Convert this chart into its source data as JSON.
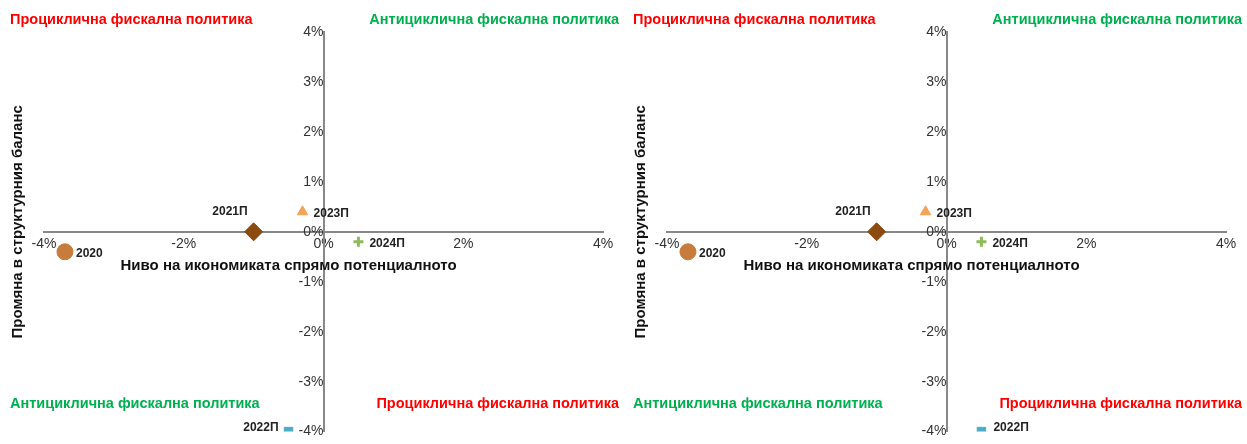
{
  "chart_data": [
    {
      "type": "scatter",
      "xlabel": "Ниво на икономиката спрямо потенциалното",
      "ylabel": "Промяна в структурния баланс",
      "annotations": [
        "Проциклична фискална политика",
        "Антициклична фискална политика",
        "Антициклична фискална политика",
        "Проциклична фискална политика"
      ],
      "xlim": [
        -4,
        4
      ],
      "ylim": [
        -4,
        4
      ],
      "xticks": [
        {
          "value": -4,
          "label": "-4%"
        },
        {
          "value": -2,
          "label": "-2%"
        },
        {
          "value": 0,
          "label": "0%"
        },
        {
          "value": 2,
          "label": "2%"
        },
        {
          "value": 4,
          "label": "4%"
        }
      ],
      "yticks": [
        {
          "value": -4,
          "label": "-4%"
        },
        {
          "value": -3,
          "label": "-3%"
        },
        {
          "value": -2,
          "label": "-2%"
        },
        {
          "value": -1,
          "label": "-1%"
        },
        {
          "value": 0,
          "label": "0%"
        },
        {
          "value": 1,
          "label": "1%"
        },
        {
          "value": 2,
          "label": "2%"
        },
        {
          "value": 3,
          "label": "3%"
        },
        {
          "value": 4,
          "label": "4%"
        }
      ],
      "grid": false,
      "legend": false,
      "series": [
        {
          "name": "2020",
          "color": "#c77c3c",
          "marker": "circle",
          "x": [
            -3.7
          ],
          "values": [
            -0.4
          ]
        },
        {
          "name": "2021П",
          "color": "#8b4a10",
          "marker": "diamond",
          "x": [
            -1.0
          ],
          "values": [
            0
          ]
        },
        {
          "name": "2023П",
          "color": "#f4a257",
          "marker": "triangle",
          "x": [
            -0.3
          ],
          "values": [
            0.4
          ]
        },
        {
          "name": "2024П",
          "color": "#8fbc5a",
          "marker": "cross",
          "x": [
            0.5
          ],
          "values": [
            -0.2
          ]
        },
        {
          "name": "2022П",
          "color": "#4bacc6",
          "marker": "square",
          "x": [
            -0.5
          ],
          "values": [
            -4
          ]
        }
      ]
    },
    {
      "type": "scatter",
      "xlabel": "Ниво на икономиката спрямо потенциалното",
      "ylabel": "Промяна в структурния баланс",
      "annotations": [
        "Проциклична фискална политика",
        "Антициклична фискална политика",
        "Антициклична фискална политика",
        "Проциклична фискална политика"
      ],
      "xlim": [
        -4,
        4
      ],
      "ylim": [
        -4,
        4
      ],
      "xticks": [
        {
          "value": -4,
          "label": "-4%"
        },
        {
          "value": -2,
          "label": "-2%"
        },
        {
          "value": 0,
          "label": "0%"
        },
        {
          "value": 2,
          "label": "2%"
        },
        {
          "value": 4,
          "label": "4%"
        }
      ],
      "yticks": [
        {
          "value": -4,
          "label": "-4%"
        },
        {
          "value": -3,
          "label": "-3%"
        },
        {
          "value": -2,
          "label": "-2%"
        },
        {
          "value": -1,
          "label": "-1%"
        },
        {
          "value": 0,
          "label": "0%"
        },
        {
          "value": 1,
          "label": "1%"
        },
        {
          "value": 2,
          "label": "2%"
        },
        {
          "value": 3,
          "label": "3%"
        },
        {
          "value": 4,
          "label": "4%"
        }
      ],
      "grid": false,
      "legend": false,
      "series": [
        {
          "name": "2020",
          "color": "#c77c3c",
          "marker": "circle",
          "x": [
            -3.7
          ],
          "values": [
            -0.4
          ]
        },
        {
          "name": "2021П",
          "color": "#8b4a10",
          "marker": "diamond",
          "x": [
            -1.0
          ],
          "values": [
            0
          ]
        },
        {
          "name": "2023П",
          "color": "#f4a257",
          "marker": "triangle",
          "x": [
            -0.3
          ],
          "values": [
            0.4
          ]
        },
        {
          "name": "2024П",
          "color": "#8fbc5a",
          "marker": "cross",
          "x": [
            0.5
          ],
          "values": [
            -0.2
          ]
        },
        {
          "name": "2022П",
          "color": "#4bacc6",
          "marker": "square",
          "x": [
            0.5
          ],
          "values": [
            -4
          ]
        }
      ]
    }
  ]
}
